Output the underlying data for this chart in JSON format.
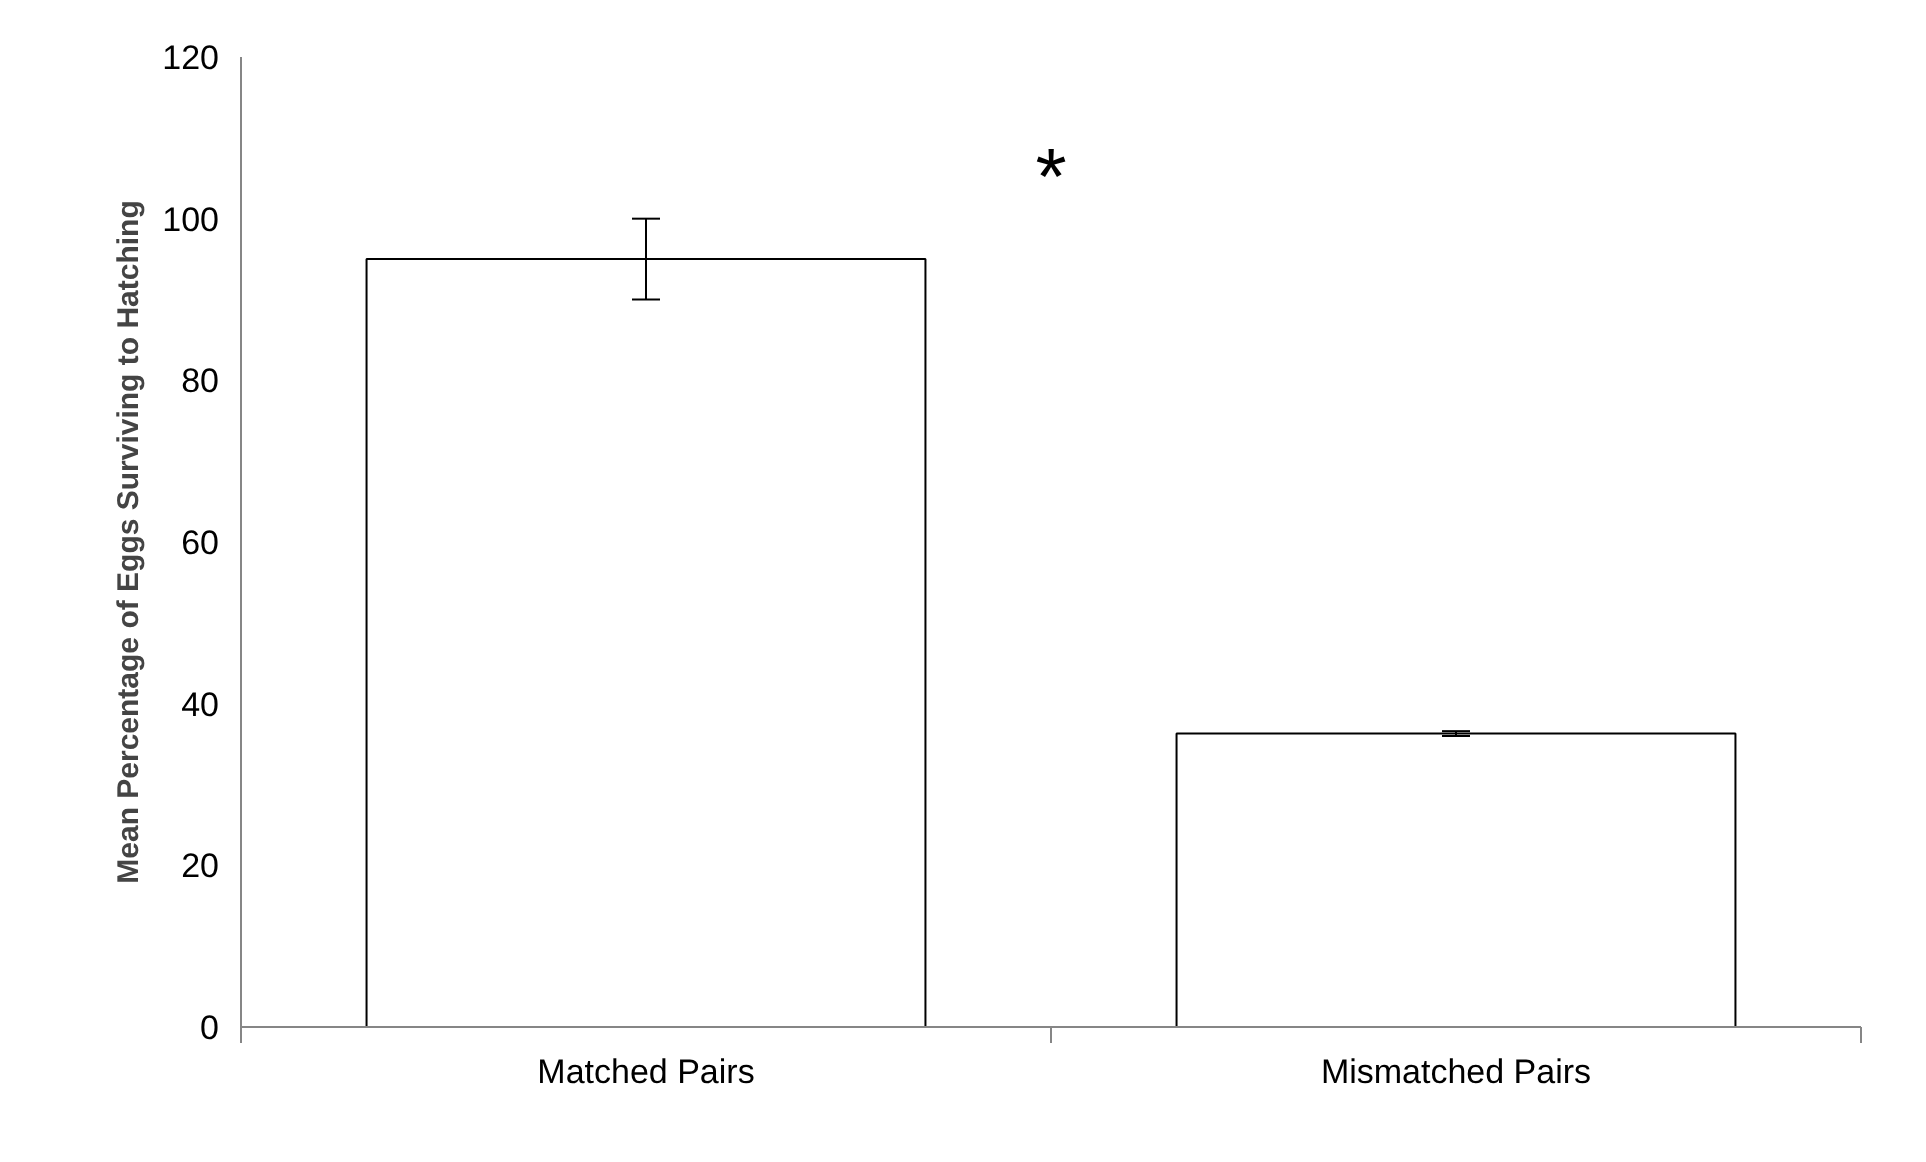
{
  "chart_data": {
    "type": "bar",
    "categories": [
      "Matched Pairs",
      "Mismatched Pairs"
    ],
    "values": [
      95,
      36.3
    ],
    "errors": [
      5,
      0.3
    ],
    "color": "#ffffff",
    "ylabel": "Mean Percentage of Eggs Surviving to Hatching",
    "ylim": [
      0,
      120
    ],
    "yticks": [
      0,
      20,
      40,
      60,
      80,
      100,
      120
    ],
    "grid": false,
    "annotations": [
      "*"
    ]
  }
}
